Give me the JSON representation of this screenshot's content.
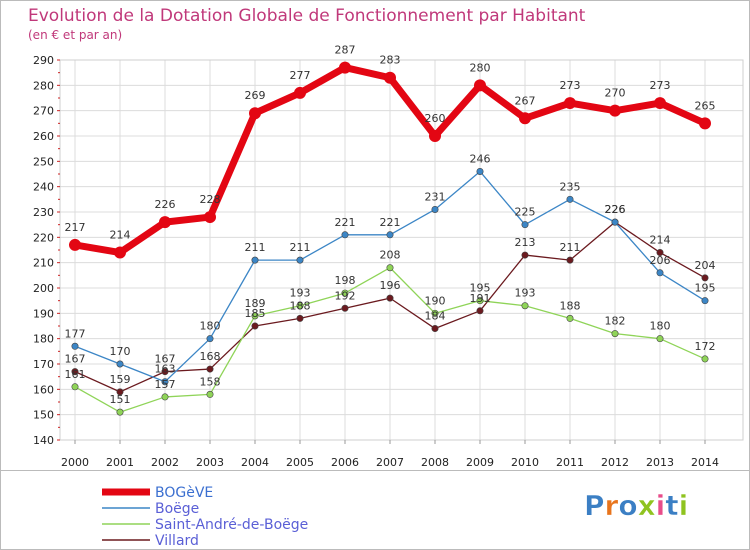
{
  "title": "Evolution de la Dotation Globale de Fonctionnement par Habitant",
  "subtitle": "(en € et par an)",
  "logo_text": "Proxiti",
  "chart_data": {
    "type": "line",
    "x": [
      "2000",
      "2001",
      "2002",
      "2003",
      "2004",
      "2005",
      "2006",
      "2007",
      "2008",
      "2009",
      "2010",
      "2011",
      "2012",
      "2013",
      "2014"
    ],
    "ylim": [
      140,
      290
    ],
    "yticks": [
      140,
      150,
      160,
      170,
      180,
      190,
      200,
      210,
      220,
      230,
      240,
      250,
      260,
      270,
      280,
      290
    ],
    "grid": true,
    "legend_position": "bottom-left",
    "series": [
      {
        "name": "BOGèVE",
        "color": "#e30613",
        "values": [
          217,
          214,
          226,
          228,
          269,
          277,
          287,
          283,
          260,
          280,
          267,
          273,
          270,
          273,
          265
        ]
      },
      {
        "name": "Boëge",
        "color": "#3c86c6",
        "values": [
          177,
          170,
          163,
          180,
          211,
          211,
          221,
          221,
          231,
          246,
          225,
          235,
          226,
          206,
          195
        ]
      },
      {
        "name": "Saint-André-de-Boëge",
        "color": "#8fd458",
        "values": [
          161,
          151,
          157,
          158,
          189,
          193,
          198,
          208,
          190,
          195,
          193,
          188,
          182,
          180,
          172
        ]
      },
      {
        "name": "Villard",
        "color": "#6b1a1f",
        "values": [
          167,
          159,
          167,
          168,
          185,
          188,
          192,
          196,
          184,
          191,
          213,
          211,
          226,
          214,
          204
        ]
      }
    ]
  }
}
